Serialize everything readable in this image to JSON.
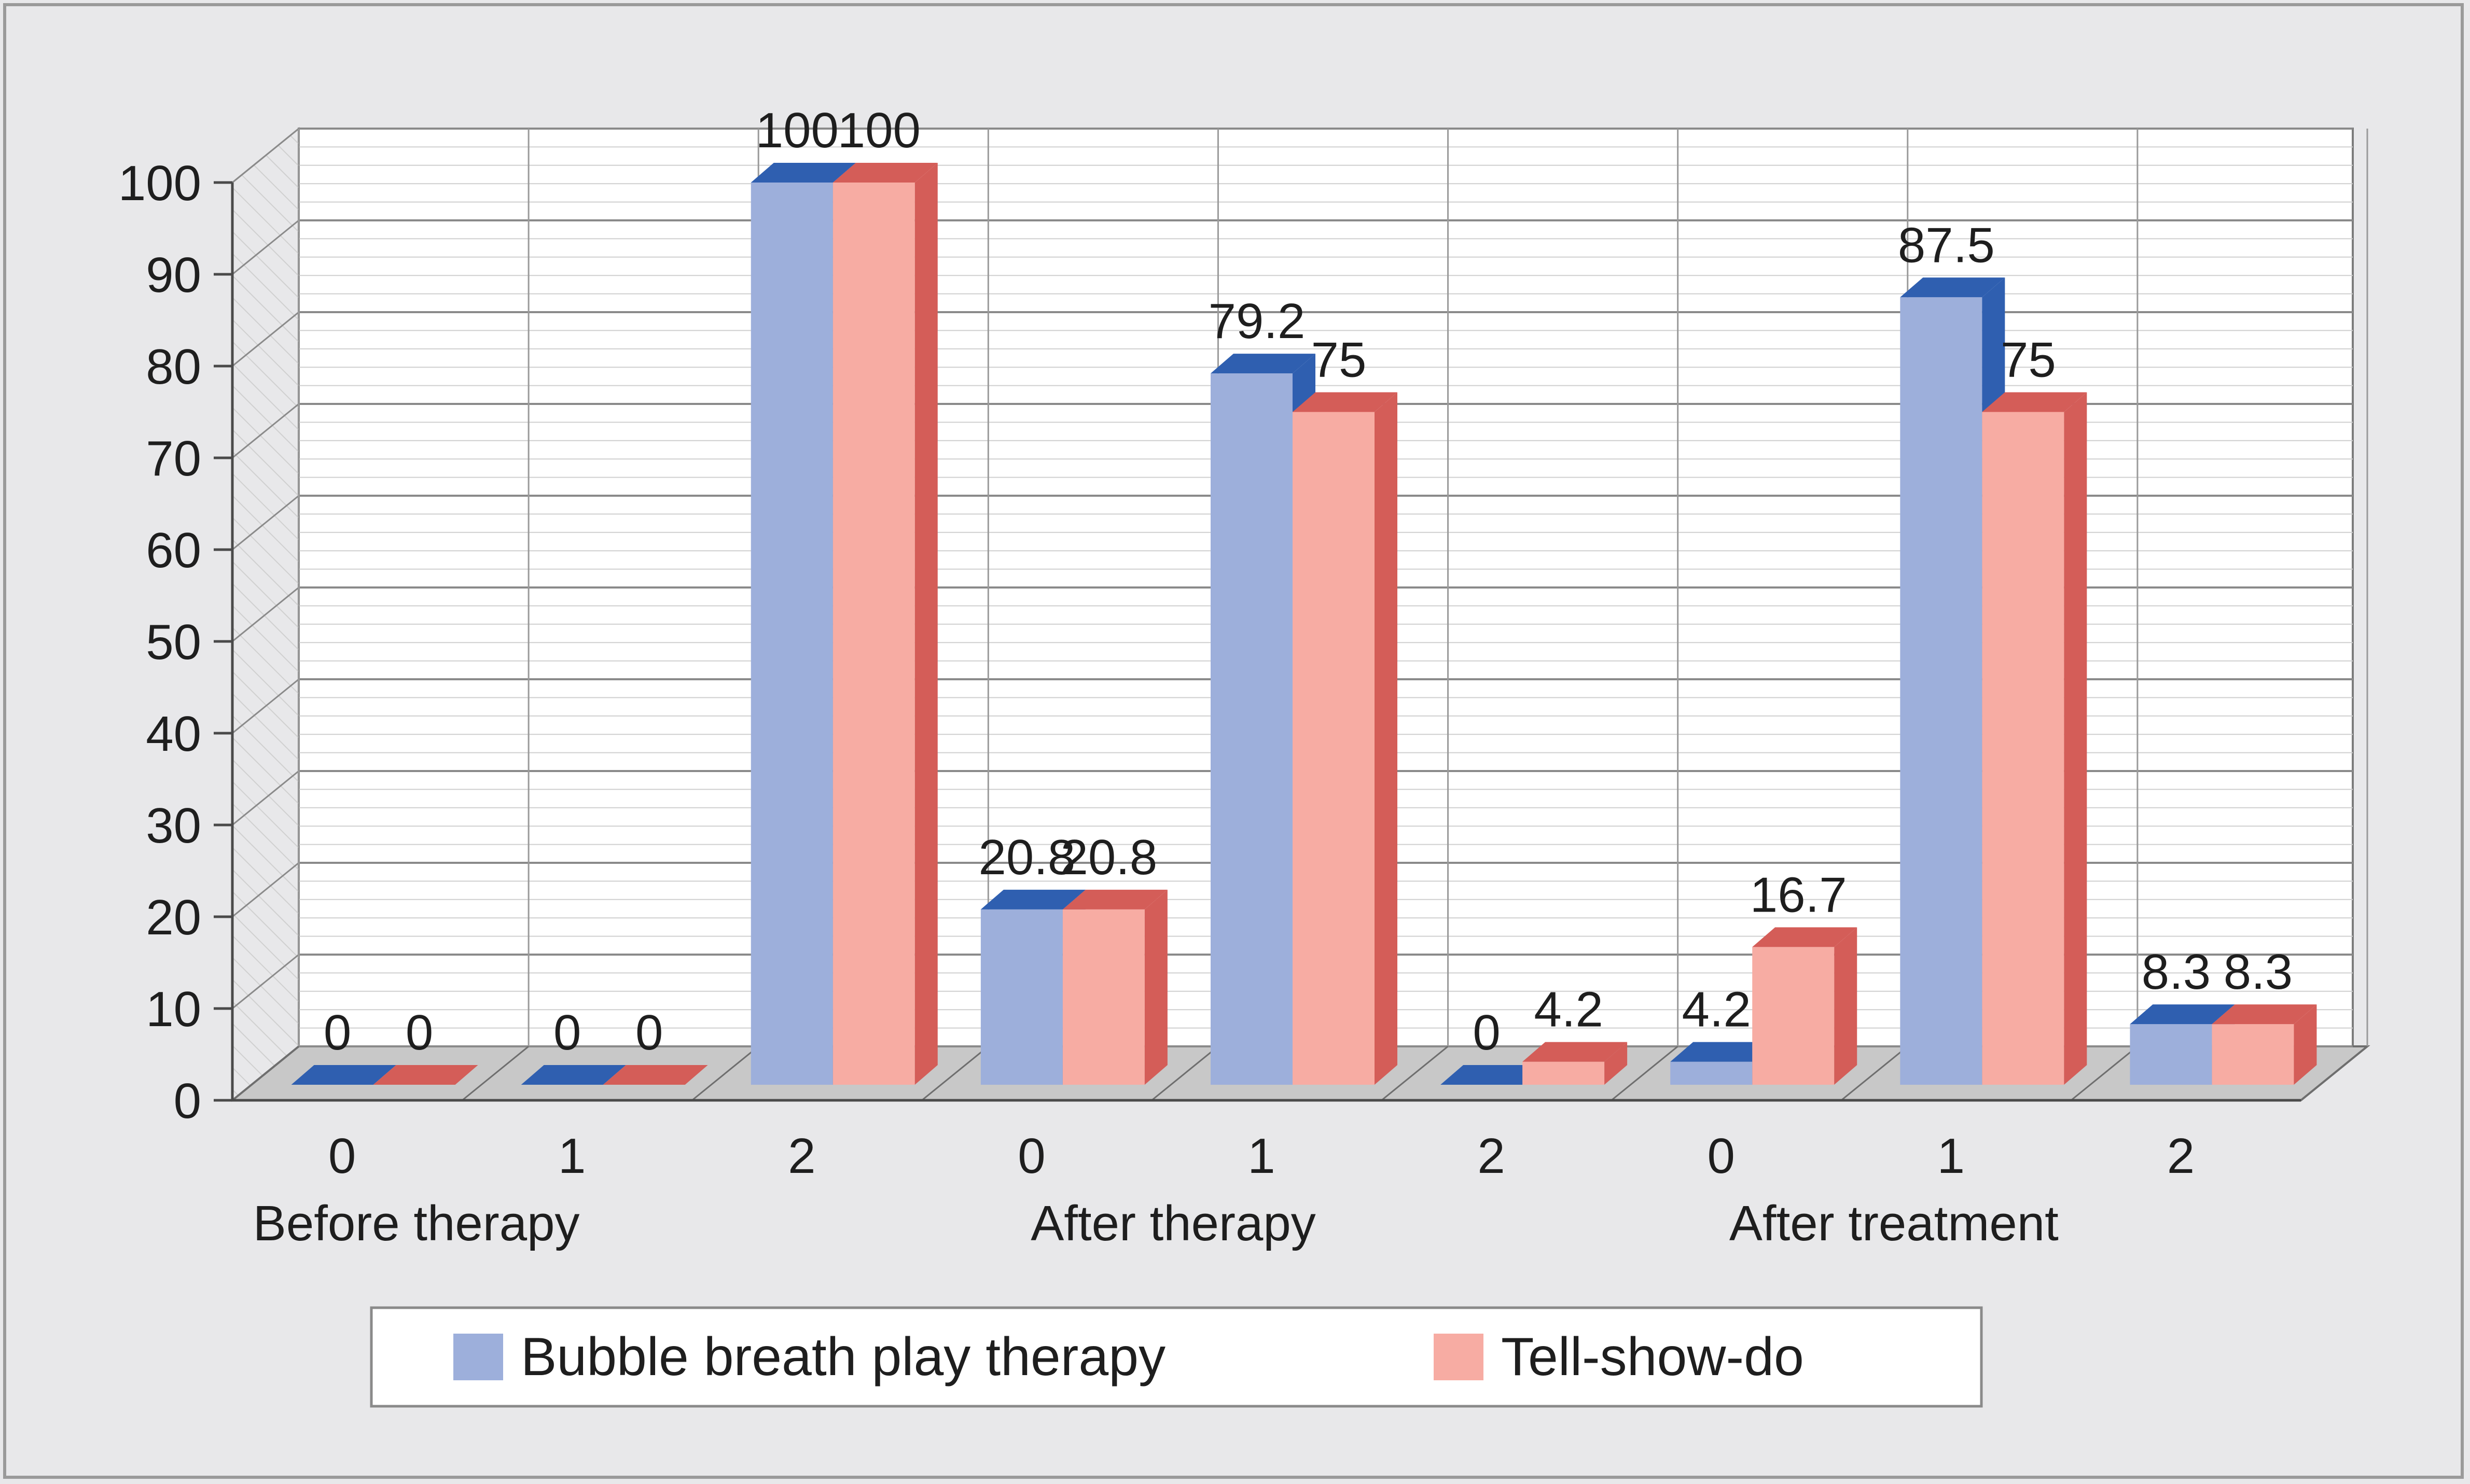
{
  "chart_data": {
    "type": "bar",
    "title": "",
    "xlabel": "",
    "ylabel": "",
    "ylim": [
      0,
      100
    ],
    "yticks": [
      "0",
      "10",
      "20",
      "30",
      "40",
      "50",
      "60",
      "70",
      "80",
      "90",
      "100"
    ],
    "groups": [
      {
        "label": "Before therapy",
        "categories": [
          "0",
          "1",
          "2"
        ]
      },
      {
        "label": "After therapy",
        "categories": [
          "0",
          "1",
          "2"
        ]
      },
      {
        "label": "After treatment",
        "categories": [
          "0",
          "1",
          "2"
        ]
      }
    ],
    "series": [
      {
        "name": "Bubble breath play therapy",
        "color": "#9dafdb",
        "top_color": "#2f5fb0",
        "side_color": "#2f5fb0",
        "values": [
          0,
          0,
          100,
          20.8,
          79.2,
          0,
          4.2,
          87.5,
          8.3
        ],
        "labels": [
          "0",
          "0",
          "100",
          "20.8",
          "79.2",
          "0",
          "4.2",
          "87.5",
          "8.3"
        ]
      },
      {
        "name": "Tell-show-do",
        "color": "#f7aca3",
        "top_color": "#d45d58",
        "side_color": "#d45d58",
        "values": [
          0,
          0,
          100,
          20.8,
          75,
          4.2,
          16.7,
          75,
          8.3
        ],
        "labels": [
          "0",
          "0",
          "100",
          "20.8",
          "75",
          "4.2",
          "16.7",
          "75",
          "8.3"
        ]
      }
    ],
    "grid": true,
    "legend": "bottom"
  }
}
